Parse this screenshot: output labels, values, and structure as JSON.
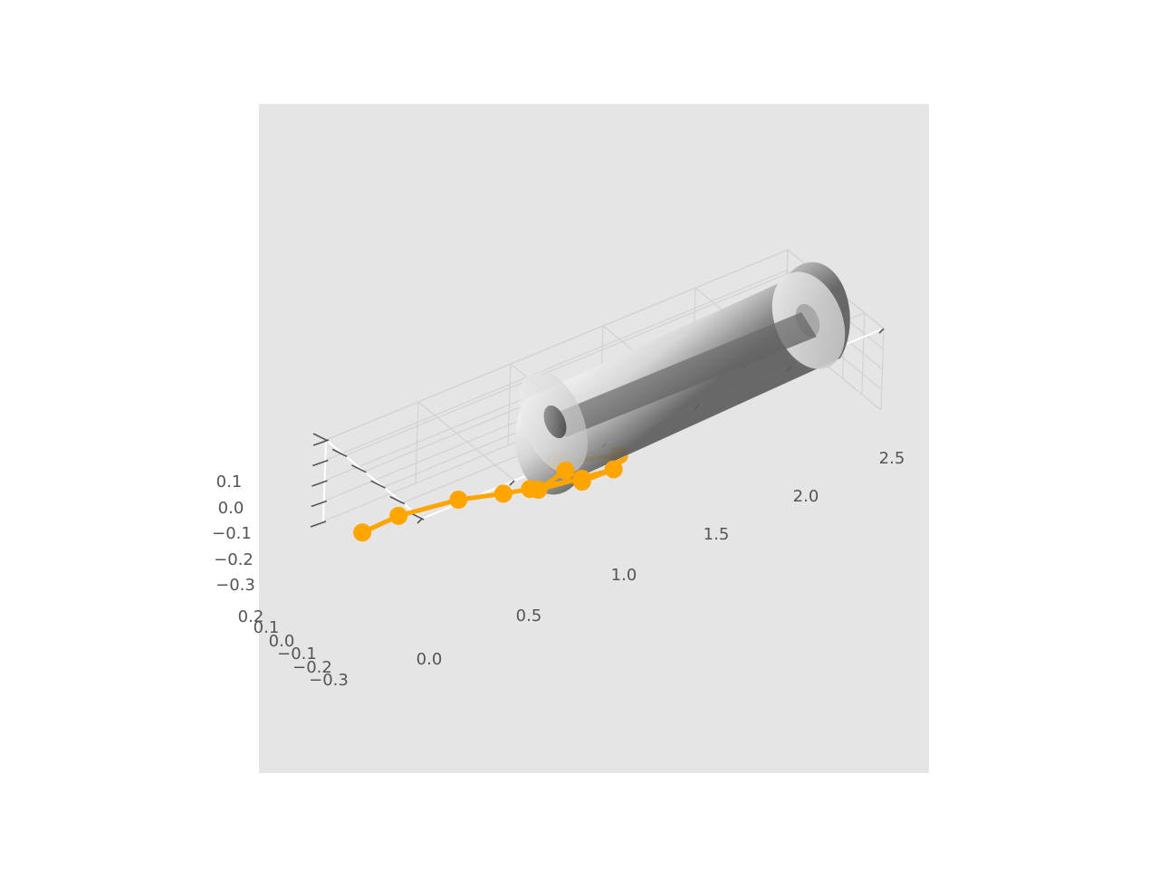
{
  "chart_data": {
    "type": "line3d",
    "title": "",
    "xlabel": "",
    "ylabel": "",
    "zlabel": "",
    "grid": true,
    "background_color": "#e5e5e5",
    "line_color": "#ffa500",
    "axes": {
      "x": {
        "ticks": [
          "0.0",
          "0.5",
          "1.0",
          "1.5",
          "2.0",
          "2.5"
        ],
        "range": [
          0,
          2.5
        ]
      },
      "y": {
        "ticks": [
          "0.2",
          "0.1",
          "0.0",
          "−0.1",
          "−0.2",
          "−0.3"
        ],
        "range": [
          -0.3,
          0.2
        ]
      },
      "z": {
        "ticks": [
          "0.1",
          "0.0",
          "−0.1",
          "−0.2",
          "−0.3"
        ],
        "range": [
          -0.3,
          0.1
        ]
      }
    },
    "series": [
      {
        "marker": "circle",
        "points": [
          {
            "x": 0.0,
            "y": 0.0,
            "z": 0.0
          },
          {
            "x": 0.25,
            "y": 0.05,
            "z": 0.05
          },
          {
            "x": 0.5,
            "y": -0.02,
            "z": 0.01
          },
          {
            "x": 0.55,
            "y": -0.2,
            "z": -0.14
          },
          {
            "x": 0.75,
            "y": -0.15,
            "z": -0.05
          },
          {
            "x": 1.0,
            "y": -0.18,
            "z": -0.03
          },
          {
            "x": 0.85,
            "y": -0.32,
            "z": -0.18
          },
          {
            "x": 1.0,
            "y": -0.34,
            "z": -0.2
          },
          {
            "x": 0.85,
            "y": -0.1,
            "z": 0.03
          },
          {
            "x": 1.05,
            "y": -0.05,
            "z": 0.05
          },
          {
            "x": 1.1,
            "y": 0.05,
            "z": 0.1
          },
          {
            "x": 1.2,
            "y": 0.1,
            "z": 0.18
          },
          {
            "x": 1.45,
            "y": 0.05,
            "z": 0.2
          }
        ]
      }
    ],
    "surface": {
      "shape": "hollow cylinder",
      "axis": "x",
      "x_range": [
        1.0,
        2.5
      ],
      "color": "gray gradient",
      "opacity": "semi-transparent"
    }
  }
}
